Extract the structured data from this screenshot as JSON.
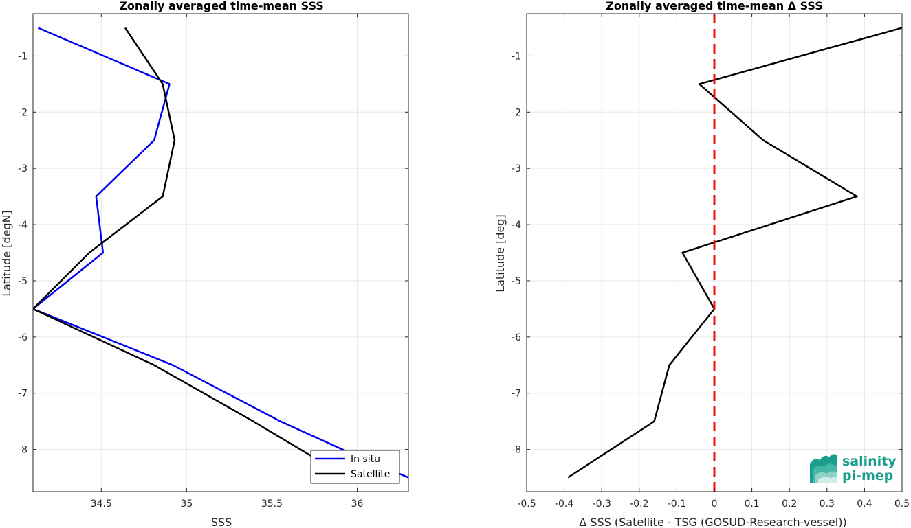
{
  "chart_data": [
    {
      "type": "line",
      "title": "Zonally averaged time-mean SSS",
      "xlabel": "SSS",
      "ylabel": "Latitude [degN]",
      "xlim": [
        34.1,
        36.3
      ],
      "ylim": [
        -8.75,
        -0.25
      ],
      "xticks": [
        34.5,
        35,
        35.5,
        36
      ],
      "xtick_labels": [
        "34.5",
        "35",
        "35.5",
        "36"
      ],
      "yticks": [
        -8,
        -7,
        -6,
        -5,
        -4,
        -3,
        -2,
        -1
      ],
      "ytick_labels": [
        "-8",
        "-7",
        "-6",
        "-5",
        "-4",
        "-3",
        "-2",
        "-1"
      ],
      "grid": true,
      "legend": {
        "placement": "bottom-right"
      },
      "series": [
        {
          "name": "In situ",
          "color": "#0000ee",
          "x": [
            34.13,
            34.9,
            34.81,
            34.47,
            34.51,
            34.1,
            34.92,
            35.55,
            35.95,
            36.3
          ],
          "y": [
            -0.5,
            -1.5,
            -2.5,
            -3.5,
            -4.5,
            -5.5,
            -6.5,
            -7.5,
            -8.05,
            -8.5
          ]
        },
        {
          "name": "Satellite",
          "color": "#000000",
          "x": [
            34.64,
            34.86,
            34.93,
            34.86,
            34.43,
            34.1,
            34.81,
            35.39,
            35.75,
            35.82
          ],
          "y": [
            -0.5,
            -1.5,
            -2.5,
            -3.5,
            -4.5,
            -5.5,
            -6.5,
            -7.5,
            -8.15,
            -8.25
          ]
        }
      ]
    },
    {
      "type": "line",
      "title": "Zonally averaged time-mean Δ SSS",
      "xlabel": "Δ SSS (Satellite - TSG (GOSUD-Research-vessel))",
      "ylabel": "Latitude [deg]",
      "xlim": [
        -0.5,
        0.5
      ],
      "ylim": [
        -8.75,
        -0.25
      ],
      "xticks": [
        -0.5,
        -0.4,
        -0.3,
        -0.2,
        -0.1,
        0,
        0.1,
        0.2,
        0.3,
        0.4,
        0.5
      ],
      "xtick_labels": [
        "-0.5",
        "-0.4",
        "-0.3",
        "-0.2",
        "-0.1",
        "0",
        "0.1",
        "0.2",
        "0.3",
        "0.4",
        "0.5"
      ],
      "yticks": [
        -8,
        -7,
        -6,
        -5,
        -4,
        -3,
        -2,
        -1
      ],
      "ytick_labels": [
        "-8",
        "-7",
        "-6",
        "-5",
        "-4",
        "-3",
        "-2",
        "-1"
      ],
      "grid": true,
      "reference_line": {
        "x": 0,
        "color": "#ee1111",
        "style": "dashed"
      },
      "series": [
        {
          "color": "#000000",
          "x": [
            0.5,
            -0.04,
            0.13,
            0.38,
            -0.085,
            0.0,
            -0.12,
            -0.16,
            -0.39
          ],
          "y": [
            -0.5,
            -1.5,
            -2.5,
            -3.5,
            -4.5,
            -5.5,
            -6.5,
            -7.5,
            -8.5
          ]
        }
      ]
    }
  ],
  "logo": {
    "line1": "salinity",
    "line2": "pi-mep",
    "color": "#1a9f8d"
  }
}
